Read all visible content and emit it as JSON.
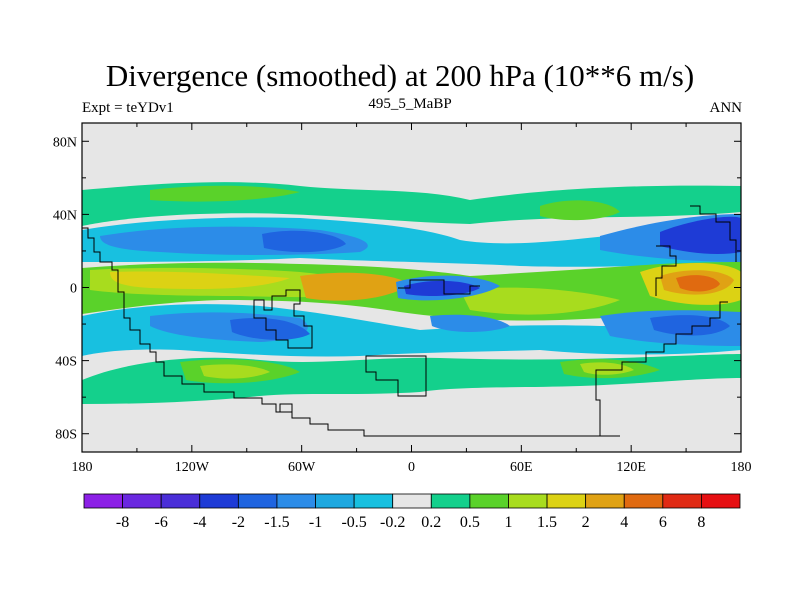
{
  "chart_data": {
    "type": "heatmap",
    "title": "Divergence (smoothed) at 200 hPa (10**6 m/s)",
    "subtitle_left": "Expt = teYDv1",
    "subtitle_center": "495_5_MaBP",
    "subtitle_right": "ANN",
    "x_ticks": [
      "180",
      "120W",
      "60W",
      "0",
      "60E",
      "120E",
      "180"
    ],
    "x_tick_values": [
      -180,
      -120,
      -60,
      0,
      60,
      120,
      180
    ],
    "y_ticks": [
      "80N",
      "40N",
      "0",
      "40S",
      "80S"
    ],
    "y_tick_values": [
      80,
      40,
      0,
      -40,
      -80
    ],
    "xlim": [
      -180,
      180
    ],
    "ylim": [
      -90,
      90
    ],
    "colorbar": {
      "labels": [
        "-8",
        "-6",
        "-4",
        "-2",
        "-1.5",
        "-1",
        "-0.5",
        "-0.2",
        "0.2",
        "0.5",
        "1",
        "1.5",
        "2",
        "4",
        "6",
        "8"
      ],
      "colors": [
        "#8c20e6",
        "#6a28e0",
        "#4a2ed8",
        "#1e3bd6",
        "#1f64e0",
        "#2c8ce8",
        "#1ea8e0",
        "#18c0e0",
        "#e6e6e6",
        "#14d08c",
        "#5ad22a",
        "#a8dc1e",
        "#dcd214",
        "#e0a214",
        "#e06a10",
        "#e02a14",
        "#e60f12"
      ]
    },
    "regions": [
      {
        "value": 0.7,
        "lon": [
          -180,
          180
        ],
        "lat": [
          24,
          54
        ],
        "note": "northern positive band"
      },
      {
        "value": -1.2,
        "lon": [
          -180,
          180
        ],
        "lat": [
          18,
          45
        ],
        "note": "northern negative band"
      },
      {
        "value": -2.2,
        "lon": [
          -130,
          -70
        ],
        "lat": [
          22,
          40
        ],
        "note": "N Pacific minimum"
      },
      {
        "value": -2.4,
        "lon": [
          130,
          180
        ],
        "lat": [
          14,
          44
        ],
        "note": "NW Pacific minimum"
      },
      {
        "value": 1.3,
        "lon": [
          -180,
          180
        ],
        "lat": [
          -22,
          14
        ],
        "note": "tropical positive band"
      },
      {
        "value": 2.4,
        "lon": [
          -90,
          0
        ],
        "lat": [
          -10,
          10
        ],
        "note": "S America tropical max"
      },
      {
        "value": 5.2,
        "lon": [
          150,
          175
        ],
        "lat": [
          -8,
          8
        ],
        "note": "W Pacific maximum"
      },
      {
        "value": -3.2,
        "lon": [
          0,
          40
        ],
        "lat": [
          -8,
          4
        ],
        "note": "Africa tropical minimum"
      },
      {
        "value": -1.3,
        "lon": [
          -180,
          180
        ],
        "lat": [
          -42,
          -18
        ],
        "note": "southern negative band"
      },
      {
        "value": 0.8,
        "lon": [
          -160,
          180
        ],
        "lat": [
          -62,
          -32
        ],
        "note": "southern positive band"
      },
      {
        "value": 0,
        "lon": [
          -180,
          180
        ],
        "lat": [
          -90,
          -70
        ],
        "note": "polar near-zero"
      },
      {
        "value": 0,
        "lon": [
          -180,
          180
        ],
        "lat": [
          56,
          90
        ],
        "note": "polar near-zero"
      }
    ]
  }
}
